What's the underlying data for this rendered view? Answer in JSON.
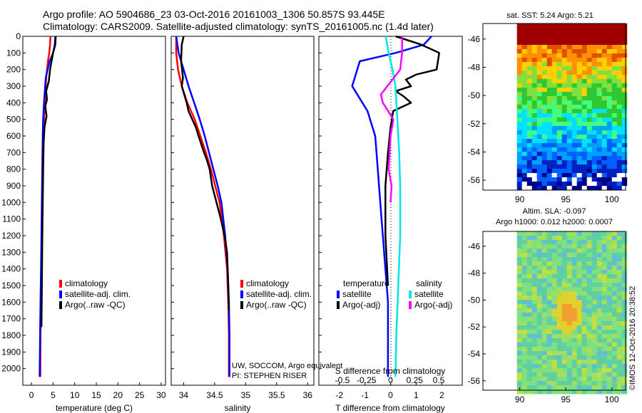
{
  "header": {
    "line1": "Argo profile: AO 5904686_23 03-Oct-2016 20161003_1306 50.857S 93.445E",
    "line2": "Climatology: CARS2009. Satellite-adjusted climatology: synTS_20161005.nc (1.4d later)"
  },
  "colors": {
    "climatology": "#ff0000",
    "satellite": "#0000ff",
    "argo": "#000000",
    "sal_satellite": "#00e5e5",
    "sal_argo": "#ff00ff"
  },
  "chart_data": [
    {
      "id": "temperature",
      "type": "line",
      "xlabel": "temperature (deg C)",
      "ylabel": "",
      "xlim": [
        -2,
        31
      ],
      "ylim": [
        2100,
        0
      ],
      "xticks": [
        "0",
        "5",
        "10",
        "15",
        "20",
        "25",
        "30"
      ],
      "yticks": [
        "0",
        "100",
        "200",
        "300",
        "400",
        "500",
        "600",
        "700",
        "800",
        "900",
        "1000",
        "1100",
        "1200",
        "1300",
        "1400",
        "1500",
        "1600",
        "1700",
        "1800",
        "1900",
        "2000"
      ],
      "legend": [
        "climatology",
        "satellite-adj. clim.",
        "Argo(..raw -QC)"
      ],
      "series": [
        {
          "name": "climatology",
          "x": [
            4.4,
            4.3,
            4.1,
            3.8,
            3.4,
            3.1,
            2.9,
            2.8,
            2.7,
            2.6,
            2.5,
            2.4,
            2.3,
            2.2,
            2.1,
            2.05
          ],
          "y": [
            0,
            50,
            100,
            150,
            250,
            400,
            500,
            600,
            700,
            800,
            1000,
            1200,
            1400,
            1600,
            1800,
            2050
          ]
        },
        {
          "name": "satellite-adj. clim.",
          "x": [
            5.5,
            5.4,
            5.0,
            4.2,
            3.3,
            2.9,
            2.7,
            2.6,
            2.5,
            2.4,
            2.3,
            2.2,
            2.1,
            2.0,
            1.9
          ],
          "y": [
            0,
            50,
            100,
            150,
            250,
            400,
            500,
            600,
            800,
            1000,
            1200,
            1400,
            1600,
            1800,
            2050
          ]
        },
        {
          "name": "Argo(..raw -QC)",
          "x": [
            5.6,
            5.5,
            5.0,
            4.3,
            4.0,
            3.4,
            3.6,
            3.2,
            3.5,
            3.0,
            2.8,
            2.7,
            2.6,
            2.5,
            2.4,
            2.3
          ],
          "y": [
            0,
            50,
            100,
            200,
            270,
            330,
            380,
            420,
            480,
            550,
            650,
            800,
            1000,
            1200,
            1500,
            1750
          ]
        }
      ]
    },
    {
      "id": "salinity",
      "type": "line",
      "xlabel": "salinity",
      "ylabel": "",
      "xlim": [
        33.8,
        36.1
      ],
      "ylim": [
        2100,
        0
      ],
      "xticks": [
        "34",
        "34.5",
        "35",
        "35.5",
        "36"
      ],
      "legend": [
        "climatology",
        "satellite-adj. clim.",
        "Argo(..raw -QC)"
      ],
      "annotation": [
        "UW, SOCCOM, Argo equivalent",
        "PI: STEPHEN RISER"
      ],
      "series": [
        {
          "name": "climatology",
          "x": [
            33.88,
            33.88,
            33.91,
            33.97,
            34.06,
            34.18,
            34.27,
            34.36,
            34.44,
            34.51,
            34.58,
            34.65,
            34.7,
            34.72,
            34.73,
            34.73
          ],
          "y": [
            0,
            100,
            200,
            300,
            400,
            500,
            600,
            700,
            800,
            900,
            1000,
            1200,
            1400,
            1600,
            1800,
            2050
          ]
        },
        {
          "name": "satellite-adj. clim.",
          "x": [
            33.88,
            33.92,
            34.0,
            34.08,
            34.17,
            34.26,
            34.34,
            34.41,
            34.48,
            34.55,
            34.61,
            34.67,
            34.71,
            34.73,
            34.74,
            34.74
          ],
          "y": [
            0,
            100,
            200,
            300,
            400,
            500,
            600,
            700,
            800,
            900,
            1000,
            1200,
            1400,
            1600,
            1800,
            2050
          ]
        },
        {
          "name": "Argo(..raw -QC)",
          "x": [
            34.0,
            33.97,
            33.96,
            33.99,
            33.97,
            34.05,
            34.08,
            34.2,
            34.24,
            34.33,
            34.38,
            34.42,
            34.46,
            34.53,
            34.6,
            34.66,
            34.7,
            34.72,
            34.73
          ],
          "y": [
            0,
            50,
            150,
            250,
            300,
            400,
            450,
            550,
            600,
            700,
            750,
            800,
            900,
            1000,
            1100,
            1200,
            1300,
            1500,
            1650
          ]
        }
      ]
    },
    {
      "id": "difference",
      "type": "line",
      "xlabel": "T difference from climatology",
      "x2label": "S difference from climatology",
      "xlim": [
        -2.8,
        2.8
      ],
      "ylim": [
        2100,
        0
      ],
      "xticks": [
        "-2",
        "-1",
        "0",
        "1",
        "2"
      ],
      "x2ticks": [
        "-0.5",
        "-0.25",
        "0",
        "0.25",
        "0.5"
      ],
      "legend_temperature_title": "temperature",
      "legend_salinity_title": "salinity",
      "legend_temperature": [
        "satellite",
        "Argo(-adj)"
      ],
      "legend_salinity": [
        "satellite",
        "Argo(-adj)"
      ],
      "series": [
        {
          "name": "temperature satellite",
          "x": [
            1.6,
            1.3,
            0.2,
            -1.2,
            -1.5,
            -0.9,
            -0.6,
            -0.5,
            -0.4,
            -0.3,
            -0.2,
            -0.1,
            -0.1,
            -0.1
          ],
          "y": [
            0,
            50,
            100,
            150,
            300,
            450,
            600,
            800,
            1000,
            1200,
            1400,
            1600,
            1800,
            2050
          ]
        },
        {
          "name": "temperature Argo(-adj)",
          "x": [
            0.2,
            1.2,
            1.9,
            1.8,
            1.0,
            0.6,
            0.8,
            0.2,
            0.5,
            0.8,
            0.1,
            0,
            -0.1,
            -0.2,
            -0.2,
            -0.1
          ],
          "y": [
            0,
            50,
            100,
            200,
            230,
            260,
            300,
            330,
            360,
            400,
            450,
            550,
            700,
            900,
            1200,
            1500
          ]
        },
        {
          "name": "salinity satellite",
          "x": [
            -0.05,
            -0.02,
            0.02,
            0.05,
            0.07,
            0.09,
            0.1,
            0.1,
            0.08,
            0.06,
            0.05
          ],
          "y": [
            0,
            100,
            200,
            300,
            500,
            700,
            900,
            1200,
            1500,
            1800,
            2050
          ]
        },
        {
          "name": "salinity Argo(-adj)",
          "x": [
            0.12,
            0.12,
            0.1,
            -0.1,
            -0.08,
            0.03,
            0.0,
            -0.02,
            0.01,
            0.0
          ],
          "y": [
            0,
            100,
            200,
            350,
            400,
            500,
            600,
            800,
            900,
            1000
          ]
        }
      ]
    },
    {
      "id": "sst-map",
      "type": "heatmap",
      "title": "sat. SST: 5.24 Argo: 5.21",
      "xlim": [
        86,
        101.5
      ],
      "ylim": [
        -56.7,
        -44.9
      ],
      "xticks": [
        "90",
        "95",
        "100"
      ],
      "yticks": [
        "-46",
        "-48",
        "-50",
        "-52",
        "-54",
        "-56"
      ],
      "palette": [
        "#00008f",
        "#0020c0",
        "#0060ff",
        "#00a0ff",
        "#00e0ff",
        "#40ff80",
        "#30c830",
        "#80e040",
        "#ffd000",
        "#ff9000",
        "#e05000",
        "#a00000"
      ]
    },
    {
      "id": "sla-map",
      "type": "heatmap",
      "title_line1": "Altim. SLA: -0.097",
      "title_line2": "Argo h1000: 0.012 h2000: 0.0007",
      "xlim": [
        86,
        101.5
      ],
      "ylim": [
        -56.7,
        -44.9
      ],
      "xticks": [
        "90",
        "95",
        "100"
      ],
      "yticks": [
        "-46",
        "-48",
        "-50",
        "-52",
        "-54",
        "-56"
      ],
      "credit": "©IMOS 12-Oct-2016 20:38:52"
    }
  ]
}
